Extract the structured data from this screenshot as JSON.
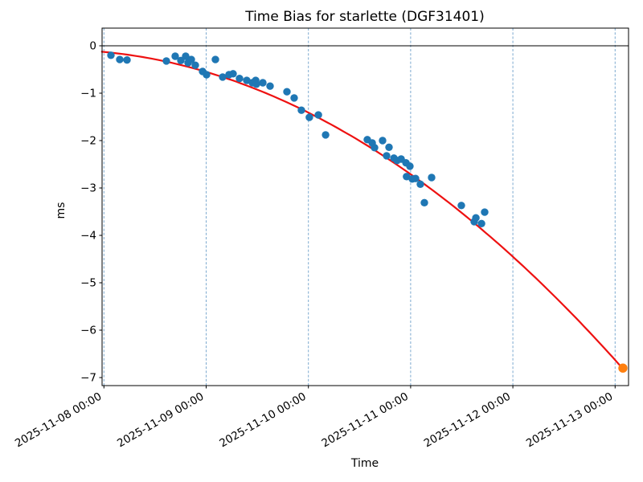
{
  "figure": {
    "background": "#ffffff"
  },
  "chart_data": {
    "type": "scatter",
    "title": "Time Bias for starlette (DGF31401)",
    "xlabel": "Time",
    "ylabel": "ms",
    "x_tick_labels": [
      "2025-11-08 00:00",
      "2025-11-09 00:00",
      "2025-11-10 00:00",
      "2025-11-11 00:00",
      "2025-11-12 00:00",
      "2025-11-13 00:00"
    ],
    "x_tick_rotation_deg": 30,
    "y_ticks": [
      0,
      -1,
      -2,
      -3,
      -4,
      -5,
      -6,
      -7
    ],
    "ylim": [
      -7.18,
      0.37
    ],
    "xlim_days_from_2025_11_08": [
      -0.02,
      5.135
    ],
    "grid": "vertical dashed lines at each day tick",
    "zero_line": "horizontal black line at 0 ms",
    "colors": {
      "observed": "#1f77b4",
      "predicted": "#ff7f0e",
      "fit": "#ee1111",
      "grid": "#7ca9cf",
      "axes": "#000000"
    },
    "series": [
      {
        "name": "observed",
        "type": "scatter",
        "color": "#1f77b4",
        "points": [
          [
            "2025-11-08 01:38",
            -0.2
          ],
          [
            "2025-11-08 03:43",
            -0.29
          ],
          [
            "2025-11-08 05:25",
            -0.3
          ],
          [
            "2025-11-08 14:40",
            -0.32
          ],
          [
            "2025-11-08 16:44",
            -0.22
          ],
          [
            "2025-11-08 18:03",
            -0.31
          ],
          [
            "2025-11-08 19:11",
            -0.22
          ],
          [
            "2025-11-08 19:45",
            -0.36
          ],
          [
            "2025-11-08 20:31",
            -0.29
          ],
          [
            "2025-11-08 21:27",
            -0.41
          ],
          [
            "2025-11-08 23:09",
            -0.54
          ],
          [
            "2025-11-09 00:06",
            -0.61
          ],
          [
            "2025-11-09 02:10",
            -0.29
          ],
          [
            "2025-11-09 03:52",
            -0.66
          ],
          [
            "2025-11-09 05:22",
            -0.61
          ],
          [
            "2025-11-09 06:19",
            -0.59
          ],
          [
            "2025-11-09 07:50",
            -0.69
          ],
          [
            "2025-11-09 09:32",
            -0.73
          ],
          [
            "2025-11-09 10:51",
            -0.78
          ],
          [
            "2025-11-09 11:37",
            -0.73
          ],
          [
            "2025-11-09 11:47",
            -0.81
          ],
          [
            "2025-11-09 13:18",
            -0.78
          ],
          [
            "2025-11-09 15:00",
            -0.85
          ],
          [
            "2025-11-09 18:58",
            -0.97
          ],
          [
            "2025-11-09 20:40",
            -1.1
          ],
          [
            "2025-11-09 22:22",
            -1.36
          ],
          [
            "2025-11-10 00:14",
            -1.51
          ],
          [
            "2025-11-10 02:20",
            -1.46
          ],
          [
            "2025-11-10 04:02",
            -1.88
          ],
          [
            "2025-11-10 13:50",
            -1.98
          ],
          [
            "2025-11-10 14:59",
            -2.05
          ],
          [
            "2025-11-10 15:32",
            -2.15
          ],
          [
            "2025-11-10 17:25",
            -2.0
          ],
          [
            "2025-11-10 18:22",
            -2.32
          ],
          [
            "2025-11-10 18:56",
            -2.14
          ],
          [
            "2025-11-10 20:04",
            -2.37
          ],
          [
            "2025-11-10 20:49",
            -2.42
          ],
          [
            "2025-11-10 21:46",
            -2.39
          ],
          [
            "2025-11-10 22:54",
            -2.47
          ],
          [
            "2025-11-10 23:02",
            -2.76
          ],
          [
            "2025-11-10 23:50",
            -2.54
          ],
          [
            "2025-11-11 00:24",
            -2.81
          ],
          [
            "2025-11-11 01:09",
            -2.8
          ],
          [
            "2025-11-11 02:17",
            -2.92
          ],
          [
            "2025-11-11 03:14",
            -3.31
          ],
          [
            "2025-11-11 04:55",
            -2.78
          ],
          [
            "2025-11-11 11:54",
            -3.37
          ],
          [
            "2025-11-11 14:56",
            -3.71
          ],
          [
            "2025-11-11 15:19",
            -3.63
          ],
          [
            "2025-11-11 16:38",
            -3.75
          ],
          [
            "2025-11-11 17:23",
            -3.51
          ]
        ]
      },
      {
        "name": "predicted",
        "type": "scatter",
        "color": "#ff7f0e",
        "points": [
          [
            "2025-11-13 01:50",
            -6.8
          ]
        ]
      }
    ],
    "fit_curve": {
      "name": "quadratic-fit",
      "color": "#ee1111",
      "poly_ms_vs_days": [
        -0.13,
        -0.2,
        -0.22
      ],
      "t_range_days": [
        -0.02,
        5.077
      ]
    }
  }
}
